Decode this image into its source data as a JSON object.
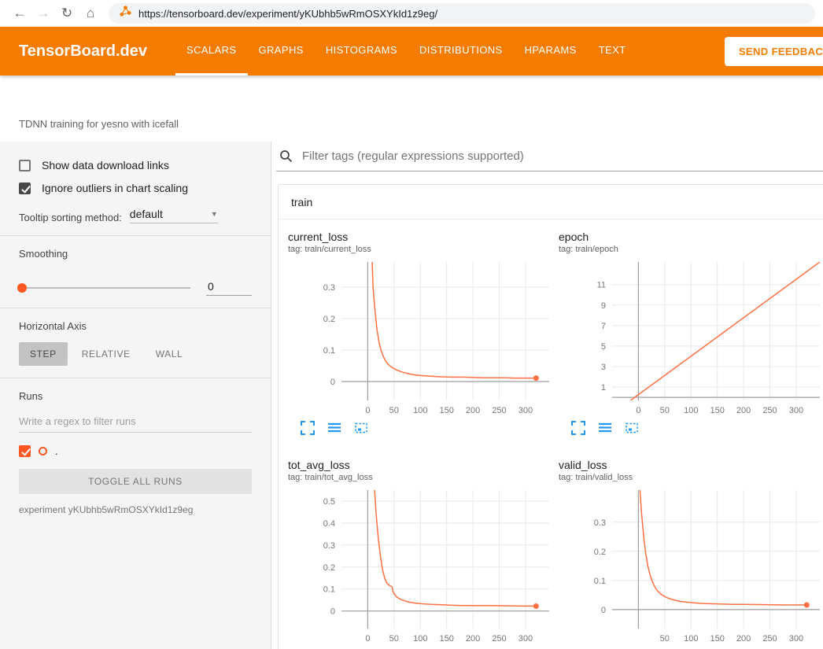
{
  "browser": {
    "url": "https://tensorboard.dev/experiment/yKUbhb5wRmOSXYkId1z9eg/"
  },
  "header": {
    "brand": "TensorBoard.dev",
    "color": "#f57c00",
    "tabs": [
      {
        "label": "SCALARS",
        "active": true
      },
      {
        "label": "GRAPHS",
        "active": false
      },
      {
        "label": "HISTOGRAMS",
        "active": false
      },
      {
        "label": "DISTRIBUTIONS",
        "active": false
      },
      {
        "label": "HPARAMS",
        "active": false
      },
      {
        "label": "TEXT",
        "active": false
      }
    ],
    "feedback_label": "SEND FEEDBACK"
  },
  "experiment": {
    "title": "TDNN training for yesno with icefall",
    "id_caption": "experiment yKUbhb5wRmOSXYkId1z9eg"
  },
  "sidebar": {
    "show_download": {
      "label": "Show data download links",
      "checked": false
    },
    "ignore_outliers": {
      "label": "Ignore outliers in chart scaling",
      "checked": true
    },
    "tooltip_sorting": {
      "label": "Tooltip sorting method:",
      "value": "default"
    },
    "smoothing": {
      "label": "Smoothing",
      "value": "0"
    },
    "horizontal_axis": {
      "label": "Horizontal Axis",
      "options": [
        {
          "label": "STEP",
          "selected": true
        },
        {
          "label": "RELATIVE",
          "selected": false
        },
        {
          "label": "WALL",
          "selected": false
        }
      ]
    },
    "runs": {
      "label": "Runs",
      "filter_placeholder": "Write a regex to filter runs",
      "items": [
        {
          "label": ".",
          "checked": true,
          "color": "#ff5722"
        }
      ],
      "toggle_all_label": "TOGGLE ALL RUNS"
    }
  },
  "main": {
    "filter_placeholder": "Filter tags (regular expressions supported)",
    "group_label": "train"
  },
  "chart_data": [
    {
      "type": "line",
      "title": "current_loss",
      "tag": "tag: train/current_loss",
      "xlim": [
        -50,
        345
      ],
      "ylim": [
        -0.06,
        0.38
      ],
      "xticks": [
        0,
        50,
        100,
        150,
        200,
        250,
        300
      ],
      "xtick_labels": [
        "0",
        "50",
        "100",
        "150",
        "200",
        "250",
        "300"
      ],
      "yticks": [
        0,
        0.1,
        0.2,
        0.3
      ],
      "ytick_labels": [
        "0",
        "0.1",
        "0.2",
        "0.3"
      ],
      "line_color": "#ff7043",
      "end_dot": true,
      "points": [
        [
          7,
          0.45
        ],
        [
          10,
          0.3
        ],
        [
          14,
          0.22
        ],
        [
          18,
          0.16
        ],
        [
          22,
          0.12
        ],
        [
          26,
          0.095
        ],
        [
          30,
          0.078
        ],
        [
          34,
          0.065
        ],
        [
          38,
          0.056
        ],
        [
          42,
          0.05
        ],
        [
          46,
          0.045
        ],
        [
          50,
          0.041
        ],
        [
          56,
          0.036
        ],
        [
          62,
          0.032
        ],
        [
          70,
          0.028
        ],
        [
          80,
          0.024
        ],
        [
          90,
          0.021
        ],
        [
          100,
          0.019
        ],
        [
          120,
          0.017
        ],
        [
          140,
          0.015
        ],
        [
          160,
          0.014
        ],
        [
          180,
          0.014
        ],
        [
          200,
          0.013
        ],
        [
          220,
          0.012
        ],
        [
          240,
          0.012
        ],
        [
          260,
          0.012
        ],
        [
          280,
          0.011
        ],
        [
          300,
          0.011
        ],
        [
          320,
          0.011
        ]
      ]
    },
    {
      "type": "line",
      "title": "epoch",
      "tag": "tag: train/epoch",
      "xlim": [
        -50,
        345
      ],
      "ylim": [
        -0.3,
        13.2
      ],
      "xticks": [
        0,
        50,
        100,
        150,
        200,
        250,
        300
      ],
      "xtick_labels": [
        "0",
        "50",
        "100",
        "150",
        "200",
        "250",
        "300"
      ],
      "yticks": [
        1,
        3,
        5,
        7,
        9,
        11
      ],
      "ytick_labels": [
        "1",
        "3",
        "5",
        "7",
        "9",
        "11"
      ],
      "line_color": "#ff7043",
      "end_dot": false,
      "points": [
        [
          -15,
          -0.3
        ],
        [
          345,
          13.2
        ]
      ]
    },
    {
      "type": "line",
      "title": "tot_avg_loss",
      "tag": "tag: train/tot_avg_loss",
      "xlim": [
        -50,
        345
      ],
      "ylim": [
        -0.08,
        0.55
      ],
      "xticks": [
        0,
        50,
        100,
        150,
        200,
        250,
        300
      ],
      "xtick_labels": [
        "0",
        "50",
        "100",
        "150",
        "200",
        "250",
        "300"
      ],
      "yticks": [
        0,
        0.1,
        0.2,
        0.3,
        0.4,
        0.5
      ],
      "ytick_labels": [
        "0",
        "0.1",
        "0.2",
        "0.3",
        "0.4",
        "0.5"
      ],
      "line_color": "#ff7043",
      "end_dot": true,
      "points": [
        [
          13,
          0.55
        ],
        [
          16,
          0.44
        ],
        [
          20,
          0.33
        ],
        [
          24,
          0.25
        ],
        [
          28,
          0.19
        ],
        [
          32,
          0.15
        ],
        [
          36,
          0.128
        ],
        [
          40,
          0.118
        ],
        [
          44,
          0.113
        ],
        [
          46,
          0.11
        ],
        [
          48,
          0.088
        ],
        [
          52,
          0.072
        ],
        [
          56,
          0.062
        ],
        [
          62,
          0.053
        ],
        [
          70,
          0.046
        ],
        [
          80,
          0.04
        ],
        [
          90,
          0.036
        ],
        [
          100,
          0.033
        ],
        [
          120,
          0.03
        ],
        [
          140,
          0.028
        ],
        [
          160,
          0.026
        ],
        [
          180,
          0.025
        ],
        [
          200,
          0.025
        ],
        [
          240,
          0.024
        ],
        [
          280,
          0.023
        ],
        [
          320,
          0.022
        ]
      ]
    },
    {
      "type": "line",
      "title": "valid_loss",
      "tag": "tag: train/valid_loss",
      "xlim": [
        -50,
        345
      ],
      "ylim": [
        -0.065,
        0.41
      ],
      "xticks": [
        0,
        50,
        100,
        150,
        200,
        250,
        300
      ],
      "xtick_labels": [
        "",
        "50",
        "100",
        "150",
        "200",
        "250",
        "300"
      ],
      "yticks": [
        0,
        0.1,
        0.2,
        0.3
      ],
      "ytick_labels": [
        "0",
        "0.1",
        "0.2",
        "0.3"
      ],
      "line_color": "#ff7043",
      "end_dot": true,
      "points": [
        [
          3,
          0.41
        ],
        [
          6,
          0.33
        ],
        [
          10,
          0.25
        ],
        [
          14,
          0.19
        ],
        [
          18,
          0.15
        ],
        [
          22,
          0.12
        ],
        [
          26,
          0.098
        ],
        [
          30,
          0.082
        ],
        [
          34,
          0.07
        ],
        [
          38,
          0.061
        ],
        [
          42,
          0.054
        ],
        [
          48,
          0.047
        ],
        [
          54,
          0.041
        ],
        [
          62,
          0.036
        ],
        [
          70,
          0.032
        ],
        [
          80,
          0.028
        ],
        [
          90,
          0.026
        ],
        [
          100,
          0.024
        ],
        [
          120,
          0.021
        ],
        [
          140,
          0.02
        ],
        [
          160,
          0.019
        ],
        [
          180,
          0.018
        ],
        [
          200,
          0.018
        ],
        [
          240,
          0.017
        ],
        [
          280,
          0.016
        ],
        [
          320,
          0.016
        ]
      ]
    }
  ]
}
